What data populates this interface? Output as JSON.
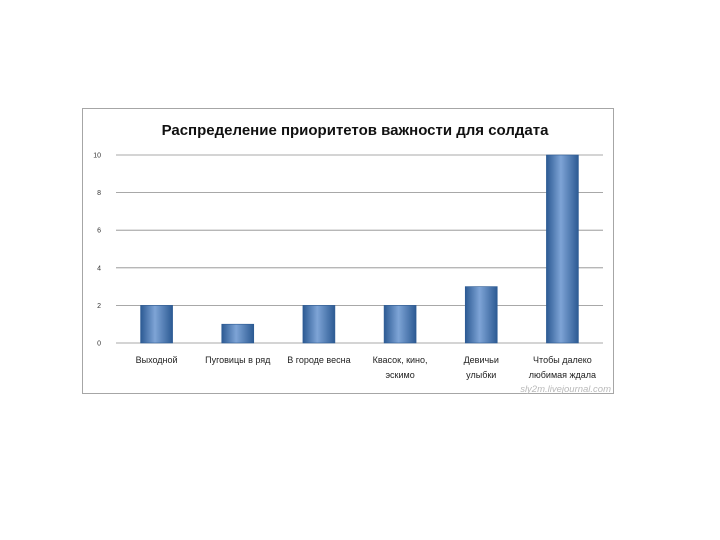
{
  "chart_data": {
    "type": "bar",
    "title": "Распределение приоритетов важности для солдата",
    "xlabel": "",
    "ylabel": "",
    "ylim": [
      0,
      10
    ],
    "yticks": [
      "0",
      "2",
      "4",
      "6",
      "8",
      "10"
    ],
    "categories": [
      [
        "Выходной"
      ],
      [
        "Пуговицы в ряд"
      ],
      [
        "В городе весна"
      ],
      [
        "Квасок, кино,",
        "эскимо"
      ],
      [
        "Девичьи",
        "улыбки"
      ],
      [
        "Чтобы далеко",
        "любимая ждала"
      ]
    ],
    "values": [
      2,
      1,
      2,
      2,
      3,
      10
    ],
    "grid": true,
    "legend": "none",
    "colors": {
      "bar": "#4f81bd",
      "bar_dark": "#2c5a93",
      "bar_light": "#7ea4d6",
      "grid": "#8c8c8c"
    }
  },
  "watermark": "sly2m.livejournal.com"
}
